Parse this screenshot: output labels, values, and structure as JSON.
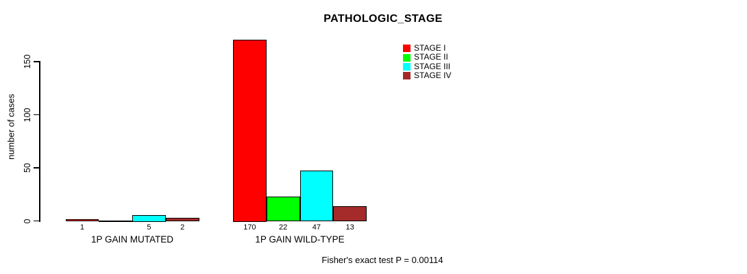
{
  "chart_data": {
    "type": "bar",
    "title": "PATHOLOGIC_STAGE",
    "ylabel": "number of cases",
    "xlabel": "",
    "annotation": "Fisher's exact test P = 0.00114",
    "categories": [
      "1P GAIN MUTATED",
      "1P GAIN WILD-TYPE"
    ],
    "series": [
      {
        "name": "STAGE I",
        "color": "#FF0000",
        "values": [
          1,
          170
        ]
      },
      {
        "name": "STAGE II",
        "color": "#00FF00",
        "values": [
          0,
          22
        ]
      },
      {
        "name": "STAGE III",
        "color": "#00FFFF",
        "values": [
          5,
          47
        ]
      },
      {
        "name": "STAGE IV",
        "color": "#A52A2A",
        "values": [
          2,
          13
        ]
      }
    ],
    "bar_value_labels": [
      [
        "1",
        "",
        "5",
        "2"
      ],
      [
        "170",
        "22",
        "47",
        "13"
      ]
    ],
    "yticks": [
      0,
      50,
      100,
      150
    ],
    "ylim": [
      0,
      170
    ],
    "grid": false,
    "legend_position": "top-right",
    "bar_border_color": "#000000",
    "background": "#FFFFFF"
  }
}
